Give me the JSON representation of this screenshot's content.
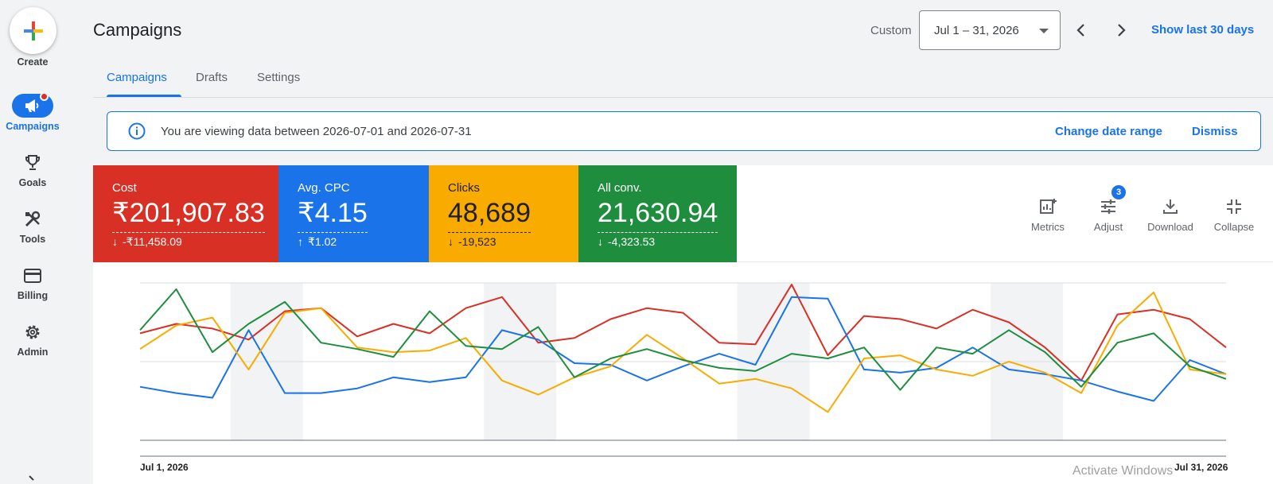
{
  "rail": {
    "create_label": "Create",
    "items": [
      {
        "label": "Campaigns",
        "icon": "megaphone-icon",
        "active": true
      },
      {
        "label": "Goals",
        "icon": "trophy-icon"
      },
      {
        "label": "Tools",
        "icon": "tools-icon"
      },
      {
        "label": "Billing",
        "icon": "credit-card-icon"
      },
      {
        "label": "Admin",
        "icon": "gear-icon"
      }
    ]
  },
  "header": {
    "title": "Campaigns",
    "range_label": "Custom",
    "date_range": "Jul 1 – 31, 2026",
    "show_last": "Show last 30 days"
  },
  "tabs": [
    {
      "label": "Campaigns",
      "active": true
    },
    {
      "label": "Drafts"
    },
    {
      "label": "Settings"
    }
  ],
  "banner": {
    "message": "You are viewing data between 2026-07-01 and 2026-07-31",
    "change_link": "Change date range",
    "dismiss_link": "Dismiss"
  },
  "metrics": [
    {
      "name": "Cost",
      "value": "₹201,907.83",
      "delta": "-₹11,458.09",
      "direction": "down",
      "color": "#d93025",
      "text_color": "#ffffff"
    },
    {
      "name": "Avg. CPC",
      "value": "₹4.15",
      "delta": "₹1.02",
      "direction": "up",
      "color": "#1a73e8",
      "text_color": "#ffffff"
    },
    {
      "name": "Clicks",
      "value": "48,689",
      "delta": "-19,523",
      "direction": "down",
      "color": "#f9ab00",
      "text_color": "#202124"
    },
    {
      "name": "All conv.",
      "value": "21,630.94",
      "delta": "-4,323.53",
      "direction": "down",
      "color": "#1e8e3e",
      "text_color": "#ffffff"
    }
  ],
  "toolbar": {
    "metrics_label": "Metrics",
    "adjust_label": "Adjust",
    "adjust_badge": "3",
    "download_label": "Download",
    "collapse_label": "Collapse"
  },
  "chart_data": {
    "type": "line",
    "x_start_label": "Jul 1, 2026",
    "x_end_label": "Jul 31, 2026",
    "weekend_bands_day_index": [
      [
        3,
        4
      ],
      [
        10,
        11
      ],
      [
        17,
        18
      ],
      [
        24,
        25
      ]
    ],
    "y_scale": [
      0,
      100
    ],
    "gridlines": [
      50,
      100
    ],
    "series": [
      {
        "color": "#d93025",
        "values": [
          68,
          74,
          71,
          64,
          82,
          84,
          66,
          74,
          68,
          84,
          91,
          62,
          65,
          77,
          84,
          81,
          62,
          61,
          99,
          54,
          79,
          77,
          71,
          83,
          75,
          59,
          38,
          80,
          83,
          77,
          59
        ]
      },
      {
        "color": "#1a73e8",
        "values": [
          34,
          30,
          27,
          70,
          30,
          30,
          33,
          40,
          37,
          40,
          70,
          64,
          49,
          48,
          38,
          47,
          55,
          48,
          91,
          90,
          45,
          43,
          46,
          59,
          45,
          42,
          38,
          31,
          25,
          51,
          42
        ]
      },
      {
        "color": "#f9ab00",
        "values": [
          58,
          73,
          78,
          45,
          81,
          84,
          59,
          56,
          57,
          65,
          38,
          29,
          40,
          47,
          67,
          52,
          36,
          39,
          33,
          18,
          52,
          54,
          45,
          41,
          50,
          43,
          30,
          73,
          94,
          45,
          42
        ]
      },
      {
        "color": "#1e8e3e",
        "values": [
          70,
          96,
          56,
          74,
          88,
          62,
          58,
          53,
          82,
          60,
          58,
          72,
          40,
          52,
          58,
          51,
          46,
          44,
          55,
          52,
          59,
          32,
          59,
          55,
          70,
          56,
          34,
          62,
          68,
          47,
          39
        ]
      }
    ]
  },
  "watermark": "Activate Windows"
}
